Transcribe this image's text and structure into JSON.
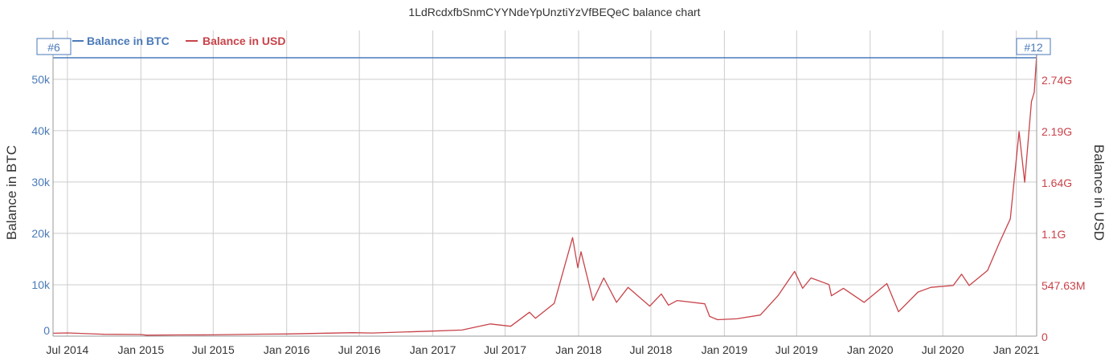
{
  "chart_data": {
    "type": "line",
    "title": "1LdRcdxfbSnmCYYNdeYpUnztiYzVfBEQeC balance chart",
    "ylabel_left": "Balance in BTC",
    "ylabel_right": "Balance in USD",
    "colors": {
      "btc": "#4a7ab8",
      "usd": "#c8434a",
      "grid": "#cccccc"
    },
    "legend_placement": "top-left",
    "grid": true,
    "x_ticks": [
      "Jul 2014",
      "Jan 2015",
      "Jul 2015",
      "Jan 2016",
      "Jul 2016",
      "Jan 2017",
      "Jul 2017",
      "Jan 2018",
      "Jul 2018",
      "Jan 2019",
      "Jul 2019",
      "Jan 2020",
      "Jul 2020",
      "Jan 2021"
    ],
    "x_tick_dates": [
      "2014-07-01",
      "2015-01-01",
      "2015-07-01",
      "2016-01-01",
      "2016-07-01",
      "2017-01-01",
      "2017-07-01",
      "2018-01-01",
      "2018-07-01",
      "2019-01-01",
      "2019-07-01",
      "2020-01-01",
      "2020-07-01",
      "2021-01-01"
    ],
    "xlim": [
      "2014-05-26",
      "2021-02-21"
    ],
    "y_left": {
      "ticks": [
        0,
        10000,
        20000,
        30000,
        40000,
        50000
      ],
      "tick_labels": [
        "0",
        "10k",
        "20k",
        "30k",
        "40k",
        "50k"
      ],
      "ylim": [
        0,
        59500
      ]
    },
    "y_right": {
      "ticks": [
        0,
        547.63,
        1095.26,
        1642.89,
        2190.52,
        2738.15
      ],
      "tick_labels": [
        "0",
        "547.63M",
        "1.1G",
        "1.64G",
        "2.19G",
        "2.74G"
      ],
      "ylim": [
        0,
        3258
      ],
      "unit": "USD millions"
    },
    "flags": [
      {
        "label": "#6",
        "date": "2014-05-26"
      },
      {
        "label": "#12",
        "date": "2021-02-21"
      }
    ],
    "series": [
      {
        "name": "Balance in BTC",
        "axis": "left",
        "points": [
          [
            "2014-05-26",
            54200
          ],
          [
            "2021-02-21",
            54200
          ]
        ]
      },
      {
        "name": "Balance in USD",
        "axis": "right",
        "points": [
          [
            "2014-05-26",
            31
          ],
          [
            "2014-07-01",
            34
          ],
          [
            "2014-10-01",
            20
          ],
          [
            "2015-01-01",
            17
          ],
          [
            "2015-01-15",
            10
          ],
          [
            "2015-04-01",
            13
          ],
          [
            "2015-07-01",
            14
          ],
          [
            "2015-11-05",
            21
          ],
          [
            "2016-01-01",
            23
          ],
          [
            "2016-06-15",
            37
          ],
          [
            "2016-08-01",
            33
          ],
          [
            "2017-01-01",
            54
          ],
          [
            "2017-03-15",
            65
          ],
          [
            "2017-05-25",
            130
          ],
          [
            "2017-07-15",
            105
          ],
          [
            "2017-08-31",
            255
          ],
          [
            "2017-09-15",
            190
          ],
          [
            "2017-11-01",
            350
          ],
          [
            "2017-12-17",
            1050
          ],
          [
            "2017-12-30",
            730
          ],
          [
            "2018-01-07",
            900
          ],
          [
            "2018-02-06",
            380
          ],
          [
            "2018-03-05",
            620
          ],
          [
            "2018-04-06",
            360
          ],
          [
            "2018-05-05",
            520
          ],
          [
            "2018-06-28",
            320
          ],
          [
            "2018-07-27",
            450
          ],
          [
            "2018-08-14",
            330
          ],
          [
            "2018-09-05",
            380
          ],
          [
            "2018-11-13",
            345
          ],
          [
            "2018-11-25",
            210
          ],
          [
            "2018-12-15",
            175
          ],
          [
            "2019-02-01",
            185
          ],
          [
            "2019-04-01",
            225
          ],
          [
            "2019-05-15",
            430
          ],
          [
            "2019-06-26",
            690
          ],
          [
            "2019-07-16",
            510
          ],
          [
            "2019-08-06",
            620
          ],
          [
            "2019-09-20",
            550
          ],
          [
            "2019-09-26",
            430
          ],
          [
            "2019-10-26",
            510
          ],
          [
            "2019-12-17",
            360
          ],
          [
            "2020-02-12",
            560
          ],
          [
            "2020-03-12",
            260
          ],
          [
            "2020-04-30",
            470
          ],
          [
            "2020-06-01",
            520
          ],
          [
            "2020-07-27",
            540
          ],
          [
            "2020-08-17",
            660
          ],
          [
            "2020-09-05",
            540
          ],
          [
            "2020-10-21",
            700
          ],
          [
            "2020-11-20",
            1000
          ],
          [
            "2020-12-17",
            1250
          ],
          [
            "2021-01-08",
            2180
          ],
          [
            "2021-01-22",
            1640
          ],
          [
            "2021-02-08",
            2500
          ],
          [
            "2021-02-15",
            2600
          ],
          [
            "2021-02-21",
            3000
          ]
        ]
      }
    ]
  }
}
